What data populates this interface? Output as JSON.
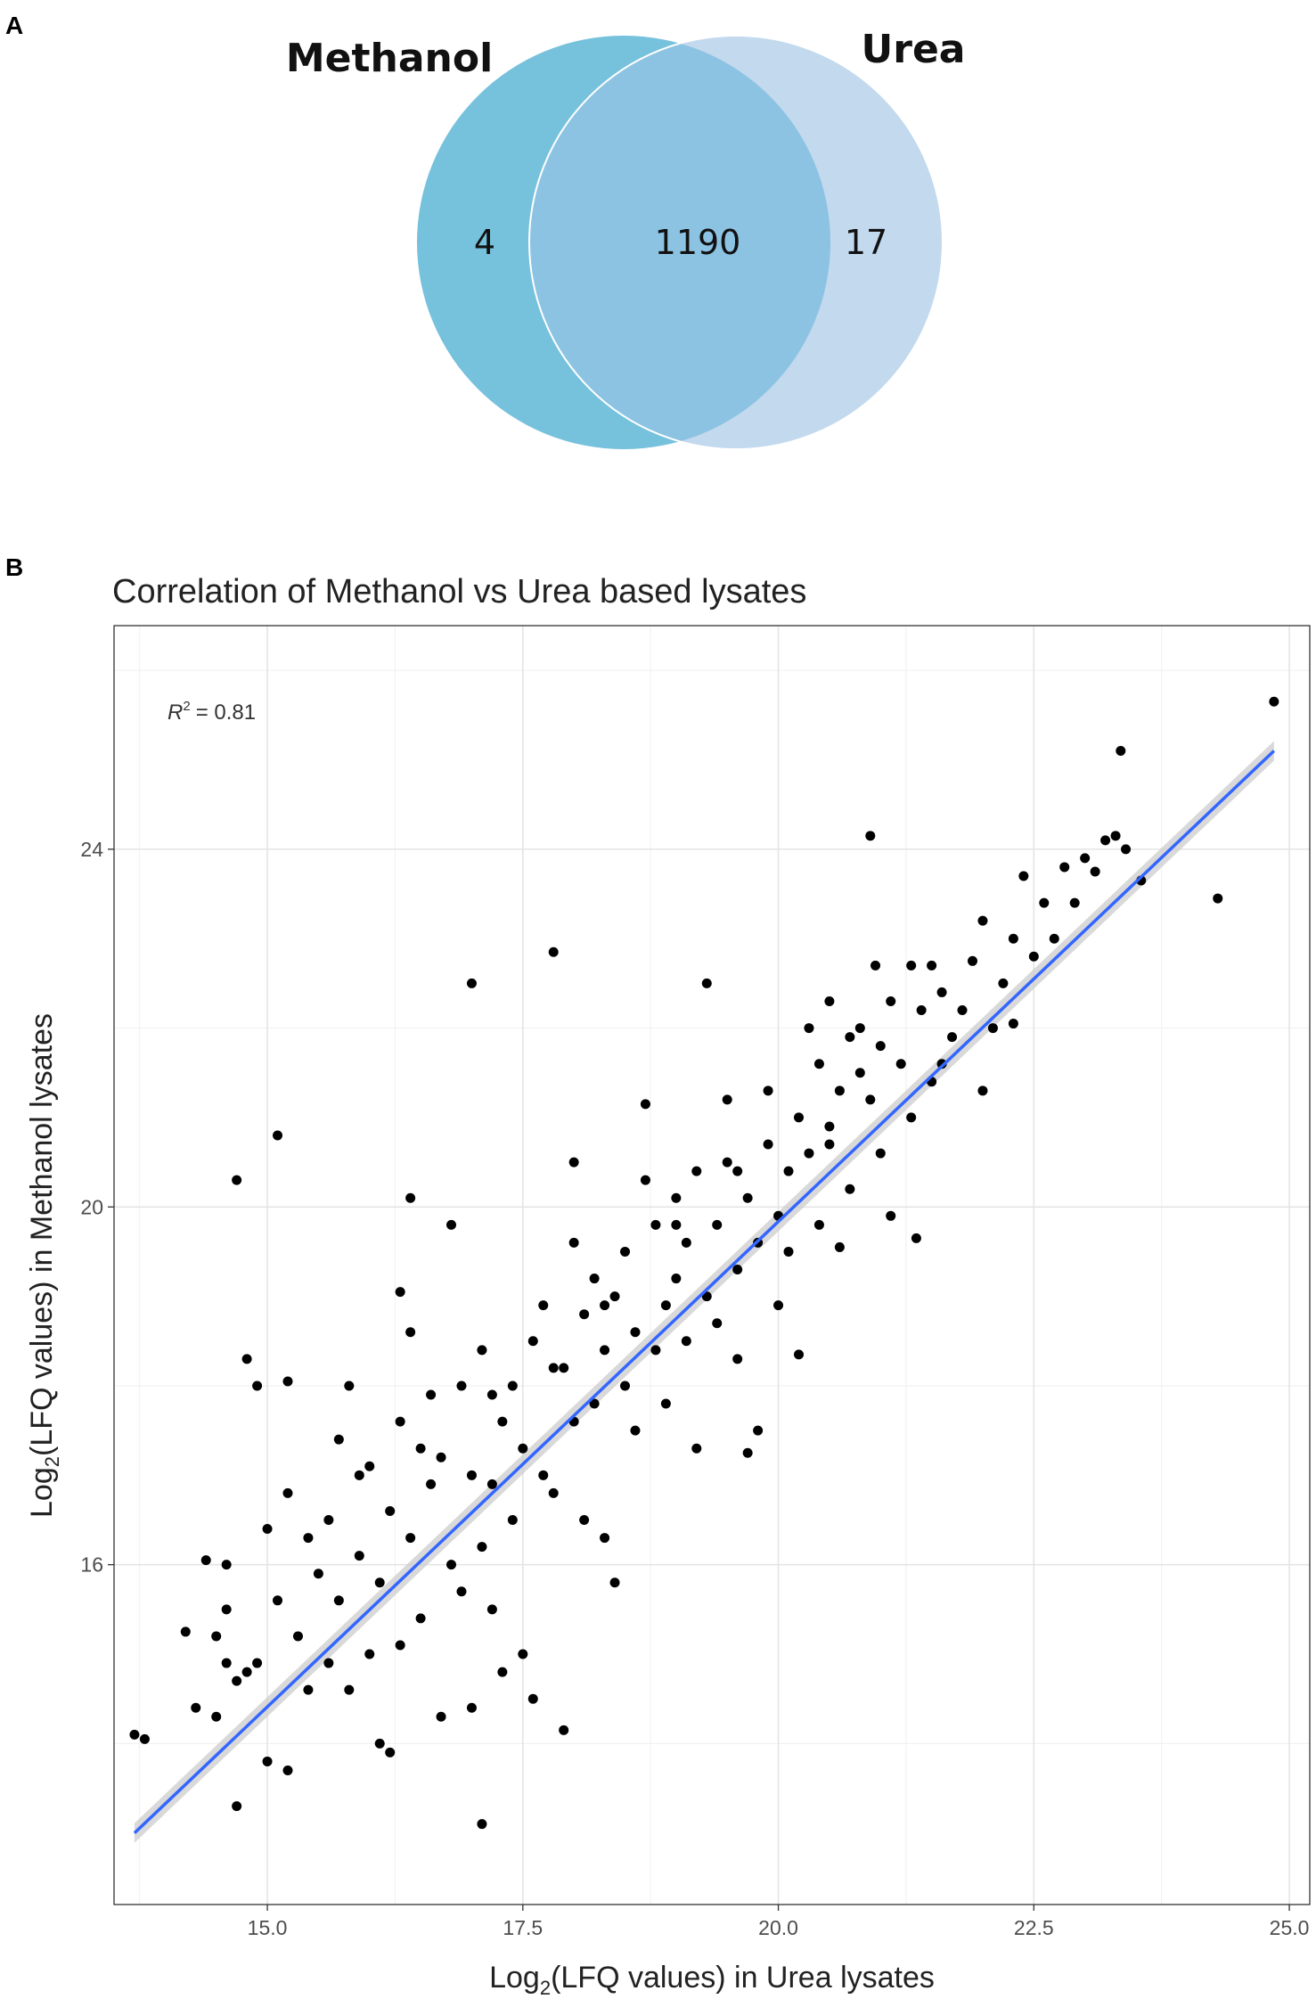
{
  "panels": {
    "a": "A",
    "b": "B"
  },
  "venn": {
    "set_a_name": "Methanol",
    "set_b_name": "Urea",
    "only_a": "4",
    "both": "1190",
    "only_b": "17",
    "colors": {
      "set_a": "#76c1dc",
      "set_b": "#c2d9ee",
      "overlap": "#8cc3e2"
    }
  },
  "chart_data": {
    "type": "scatter",
    "title": "Correlation of Methanol vs Urea based lysates",
    "xlabel": {
      "prefix": "Log",
      "sub": "2",
      "suffix": "(LFQ values) in Urea lysates"
    },
    "ylabel": {
      "prefix": "Log",
      "sub": "2",
      "suffix": "(LFQ values) in Methanol lysates"
    },
    "xlim": [
      13.5,
      25.2
    ],
    "ylim": [
      12.2,
      26.5
    ],
    "x_ticks": [
      "15.0",
      "17.5",
      "20.0",
      "22.5",
      "25.0"
    ],
    "x_tick_values": [
      15.0,
      17.5,
      20.0,
      22.5,
      25.0
    ],
    "y_ticks": [
      "16",
      "20",
      "24"
    ],
    "y_tick_values": [
      16,
      20,
      24
    ],
    "grid": true,
    "annotation": {
      "r_letter": "R",
      "r_power": "2",
      "r_value": "= 0.81"
    },
    "fit_line": {
      "x": [
        13.7,
        24.85
      ],
      "y": [
        13.0,
        25.1
      ],
      "color": "#3366ff",
      "band_color": "#cccccc"
    },
    "point_color": "#000000",
    "series": [
      {
        "points": [
          [
            13.7,
            14.1
          ],
          [
            13.8,
            14.05
          ],
          [
            14.2,
            15.25
          ],
          [
            14.3,
            14.4
          ],
          [
            14.4,
            16.05
          ],
          [
            14.5,
            14.3
          ],
          [
            14.5,
            15.2
          ],
          [
            14.6,
            15.5
          ],
          [
            14.6,
            16.0
          ],
          [
            14.6,
            14.9
          ],
          [
            14.7,
            14.7
          ],
          [
            14.7,
            13.3
          ],
          [
            14.7,
            20.3
          ],
          [
            14.8,
            14.8
          ],
          [
            14.8,
            18.3
          ],
          [
            14.9,
            18.0
          ],
          [
            14.9,
            14.9
          ],
          [
            15.0,
            16.4
          ],
          [
            15.0,
            13.8
          ],
          [
            15.1,
            20.8
          ],
          [
            15.1,
            15.6
          ],
          [
            15.2,
            13.7
          ],
          [
            15.2,
            18.05
          ],
          [
            15.2,
            16.8
          ],
          [
            15.3,
            15.2
          ],
          [
            15.4,
            14.6
          ],
          [
            15.4,
            16.3
          ],
          [
            15.5,
            15.9
          ],
          [
            15.6,
            14.9
          ],
          [
            15.7,
            17.4
          ],
          [
            15.7,
            15.6
          ],
          [
            15.8,
            18.0
          ],
          [
            15.8,
            14.6
          ],
          [
            15.9,
            16.1
          ],
          [
            16.0,
            15.0
          ],
          [
            16.0,
            17.1
          ],
          [
            16.1,
            14.0
          ],
          [
            16.1,
            15.8
          ],
          [
            16.2,
            16.6
          ],
          [
            16.2,
            13.9
          ],
          [
            16.3,
            17.6
          ],
          [
            16.3,
            19.05
          ],
          [
            16.3,
            15.1
          ],
          [
            16.4,
            16.3
          ],
          [
            16.4,
            18.6
          ],
          [
            16.4,
            20.1
          ],
          [
            16.5,
            17.3
          ],
          [
            16.5,
            15.4
          ],
          [
            16.6,
            16.9
          ],
          [
            16.7,
            14.3
          ],
          [
            16.7,
            17.2
          ],
          [
            16.8,
            19.8
          ],
          [
            16.8,
            16.0
          ],
          [
            16.9,
            18.0
          ],
          [
            16.9,
            15.7
          ],
          [
            17.0,
            17.0
          ],
          [
            17.0,
            14.4
          ],
          [
            17.0,
            22.5
          ],
          [
            17.1,
            16.2
          ],
          [
            17.1,
            13.1
          ],
          [
            17.1,
            18.4
          ],
          [
            17.2,
            16.9
          ],
          [
            17.2,
            15.5
          ],
          [
            17.3,
            17.6
          ],
          [
            17.3,
            14.8
          ],
          [
            17.4,
            18.0
          ],
          [
            17.4,
            16.5
          ],
          [
            17.5,
            17.3
          ],
          [
            17.5,
            15.0
          ],
          [
            17.6,
            18.5
          ],
          [
            17.6,
            14.5
          ],
          [
            17.7,
            17.0
          ],
          [
            17.7,
            18.9
          ],
          [
            17.8,
            22.85
          ],
          [
            17.8,
            16.8
          ],
          [
            17.9,
            18.2
          ],
          [
            17.9,
            14.15
          ],
          [
            18.0,
            17.6
          ],
          [
            18.0,
            20.5
          ],
          [
            18.0,
            19.6
          ],
          [
            18.1,
            16.5
          ],
          [
            18.1,
            18.8
          ],
          [
            18.2,
            17.8
          ],
          [
            18.2,
            19.2
          ],
          [
            18.3,
            16.3
          ],
          [
            18.3,
            18.4
          ],
          [
            18.4,
            19.0
          ],
          [
            18.4,
            15.8
          ],
          [
            18.5,
            18.0
          ],
          [
            18.5,
            19.5
          ],
          [
            18.6,
            17.5
          ],
          [
            18.6,
            18.6
          ],
          [
            18.7,
            20.3
          ],
          [
            18.7,
            21.15
          ],
          [
            18.8,
            18.4
          ],
          [
            18.8,
            19.8
          ],
          [
            18.9,
            18.9
          ],
          [
            18.9,
            17.8
          ],
          [
            19.0,
            19.2
          ],
          [
            19.0,
            20.1
          ],
          [
            19.1,
            18.5
          ],
          [
            19.1,
            19.6
          ],
          [
            19.2,
            17.3
          ],
          [
            19.2,
            20.4
          ],
          [
            19.3,
            19.0
          ],
          [
            19.3,
            22.5
          ],
          [
            19.4,
            18.7
          ],
          [
            19.4,
            19.8
          ],
          [
            19.5,
            20.5
          ],
          [
            19.5,
            21.2
          ],
          [
            19.6,
            19.3
          ],
          [
            19.6,
            18.3
          ],
          [
            19.7,
            20.1
          ],
          [
            19.7,
            17.25
          ],
          [
            19.8,
            19.6
          ],
          [
            19.8,
            17.5
          ],
          [
            19.9,
            20.7
          ],
          [
            19.9,
            21.3
          ],
          [
            20.0,
            19.9
          ],
          [
            20.0,
            18.9
          ],
          [
            20.1,
            20.4
          ],
          [
            20.1,
            19.5
          ],
          [
            20.2,
            18.35
          ],
          [
            20.2,
            21.0
          ],
          [
            20.3,
            20.6
          ],
          [
            20.3,
            22.0
          ],
          [
            20.4,
            19.8
          ],
          [
            20.4,
            21.6
          ],
          [
            20.5,
            20.9
          ],
          [
            20.5,
            22.3
          ],
          [
            20.6,
            19.55
          ],
          [
            20.6,
            21.3
          ],
          [
            20.7,
            21.9
          ],
          [
            20.7,
            20.2
          ],
          [
            20.8,
            21.5
          ],
          [
            20.8,
            22.0
          ],
          [
            20.9,
            21.2
          ],
          [
            20.9,
            24.15
          ],
          [
            20.95,
            22.7
          ],
          [
            21.0,
            20.6
          ],
          [
            21.0,
            21.8
          ],
          [
            21.1,
            22.3
          ],
          [
            21.1,
            19.9
          ],
          [
            21.2,
            21.6
          ],
          [
            21.3,
            22.7
          ],
          [
            21.3,
            21.0
          ],
          [
            21.35,
            19.65
          ],
          [
            21.4,
            22.2
          ],
          [
            21.5,
            22.7
          ],
          [
            21.5,
            21.4
          ],
          [
            21.6,
            22.4
          ],
          [
            21.7,
            21.9
          ],
          [
            21.8,
            22.2
          ],
          [
            21.9,
            22.75
          ],
          [
            22.0,
            21.3
          ],
          [
            22.0,
            23.2
          ],
          [
            22.1,
            22.0
          ],
          [
            22.2,
            22.5
          ],
          [
            22.3,
            23.0
          ],
          [
            22.3,
            22.05
          ],
          [
            22.4,
            23.7
          ],
          [
            22.5,
            22.8
          ],
          [
            22.6,
            23.4
          ],
          [
            22.7,
            23.0
          ],
          [
            22.8,
            23.8
          ],
          [
            22.9,
            23.4
          ],
          [
            23.0,
            23.9
          ],
          [
            23.1,
            23.75
          ],
          [
            23.2,
            24.1
          ],
          [
            23.3,
            24.15
          ],
          [
            23.35,
            25.1
          ],
          [
            23.4,
            24.0
          ],
          [
            23.55,
            23.65
          ],
          [
            24.3,
            23.45
          ],
          [
            24.85,
            25.65
          ],
          [
            15.6,
            16.5
          ],
          [
            15.9,
            17.0
          ],
          [
            16.6,
            17.9
          ],
          [
            17.2,
            17.9
          ],
          [
            17.8,
            18.2
          ],
          [
            18.3,
            18.9
          ],
          [
            19.0,
            19.8
          ],
          [
            19.6,
            20.4
          ],
          [
            20.5,
            20.7
          ],
          [
            21.6,
            21.6
          ]
        ]
      }
    ]
  }
}
